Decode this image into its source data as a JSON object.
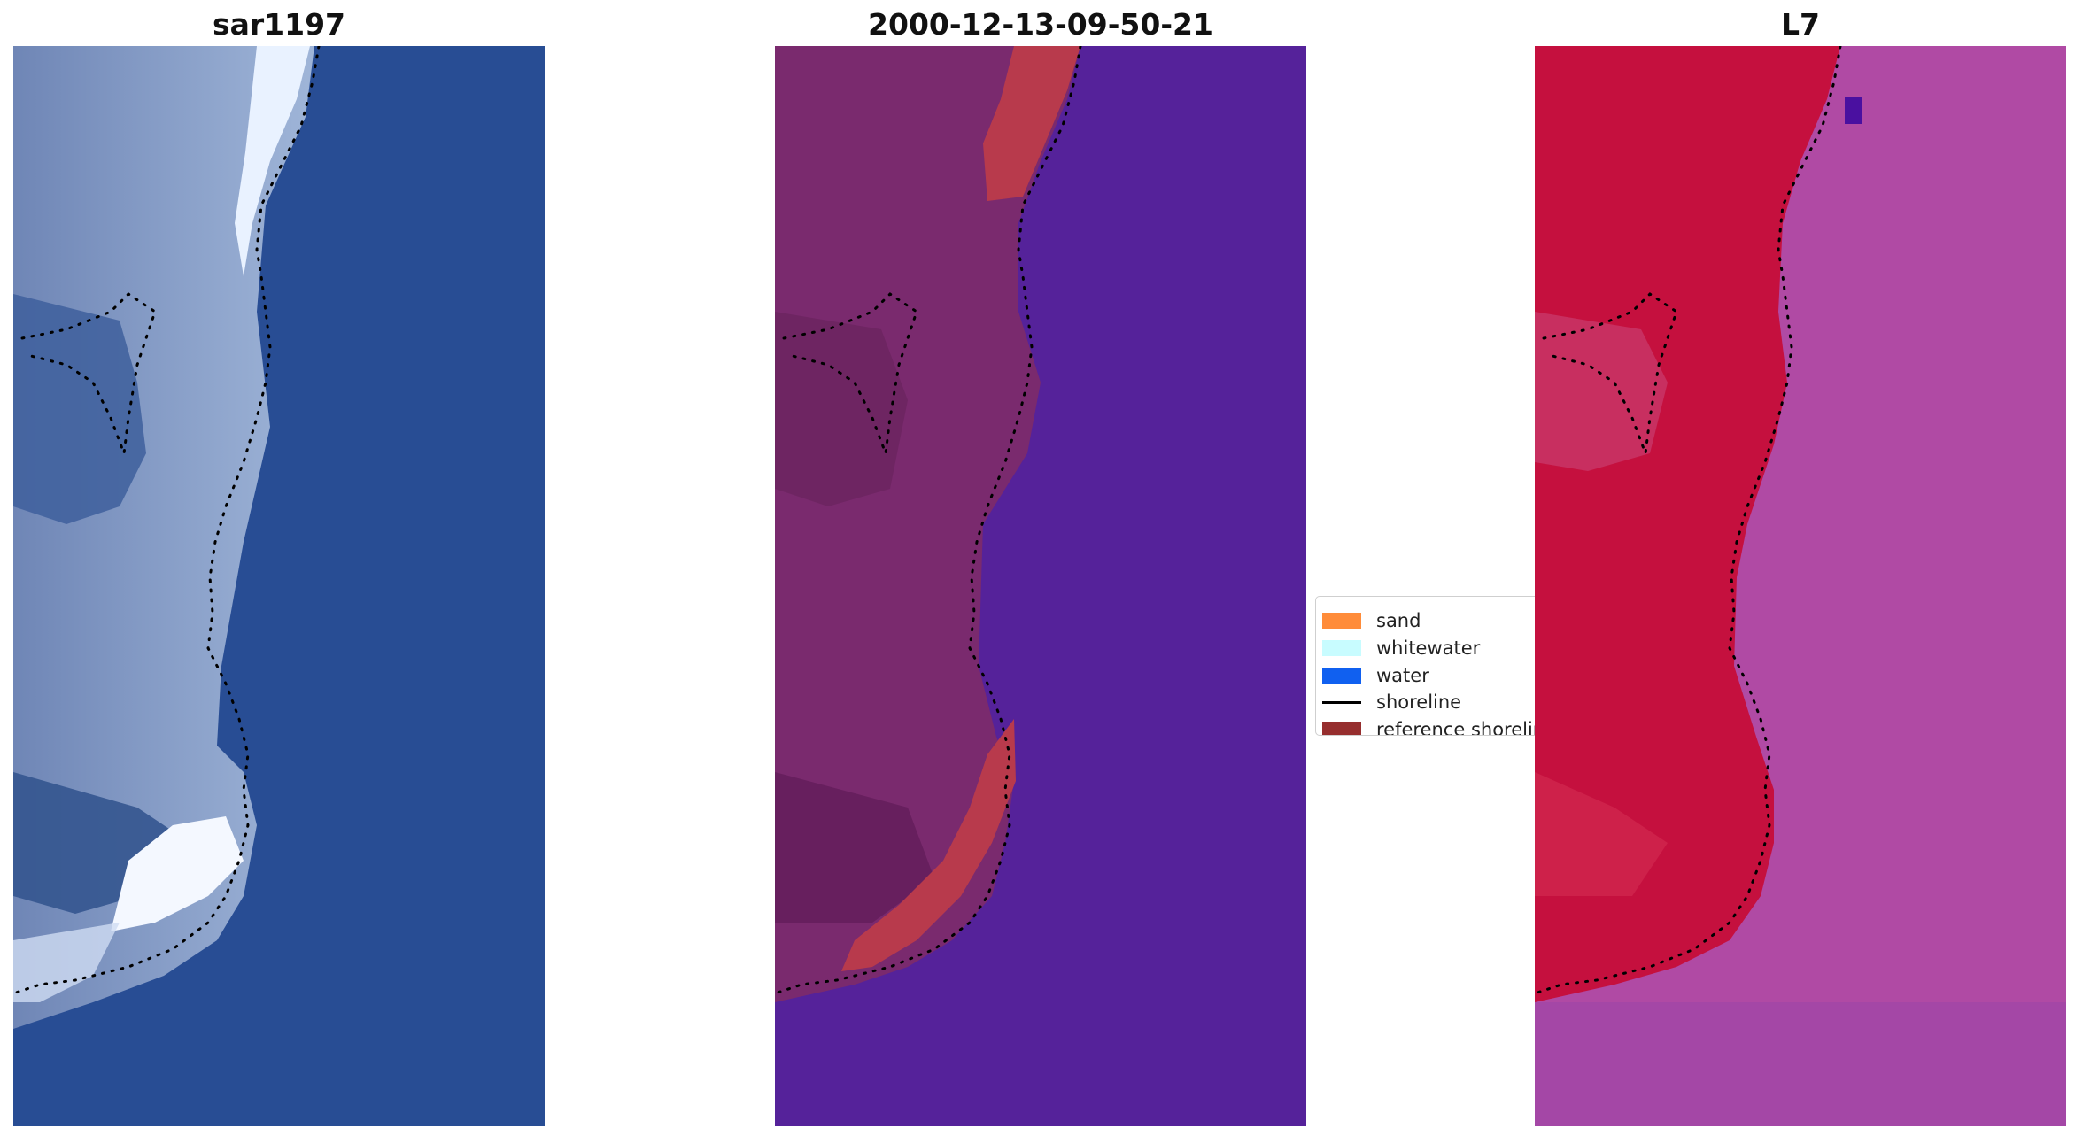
{
  "panels": [
    {
      "title": "sar1197"
    },
    {
      "title": "2000-12-13-09-50-21"
    },
    {
      "title": "L7"
    }
  ],
  "legend": {
    "items": [
      {
        "label": "sand",
        "color": "#ff8c3a",
        "kind": "patch"
      },
      {
        "label": "whitewater",
        "color": "#c8fcff",
        "kind": "patch"
      },
      {
        "label": "water",
        "color": "#1060f0",
        "kind": "patch"
      },
      {
        "label": "shoreline",
        "color": "#000000",
        "kind": "line"
      },
      {
        "label": "reference shoreline",
        "color": "#962e2e",
        "kind": "patch"
      }
    ]
  },
  "colors": {
    "rgb_water": "#284d94",
    "rgb_land": "#8ea6cf",
    "rgb_surf": "#f2f6ff",
    "class_background": "#55229a",
    "class_land": "#7a2a6e",
    "class_sand": "#b83a4c",
    "ndwi_land": "#c5103e",
    "ndwi_water": "#b04aa4"
  }
}
